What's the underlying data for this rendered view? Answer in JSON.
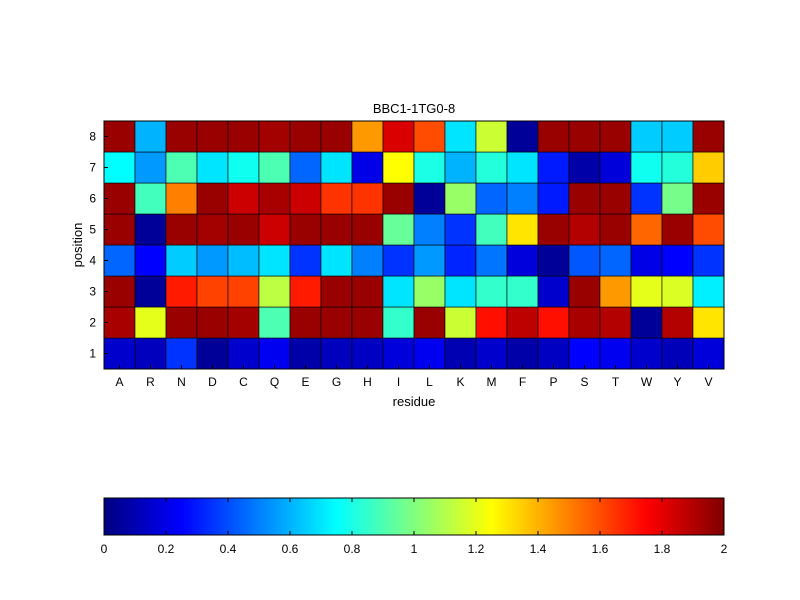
{
  "chart_data": {
    "type": "heatmap",
    "title": "BBC1-1TG0-8",
    "xlabel": "residue",
    "ylabel": "position",
    "x_categories": [
      "A",
      "R",
      "N",
      "D",
      "C",
      "Q",
      "E",
      "G",
      "H",
      "I",
      "L",
      "K",
      "M",
      "F",
      "P",
      "S",
      "T",
      "W",
      "Y",
      "V"
    ],
    "y_categories": [
      "1",
      "2",
      "3",
      "4",
      "5",
      "6",
      "7",
      "8"
    ],
    "colormap": "jet",
    "clim": [
      0,
      2
    ],
    "colorbar": {
      "placement": "bottom",
      "ticks": [
        "0",
        "0.2",
        "0.4",
        "0.6",
        "0.8",
        "1",
        "1.2",
        "1.4",
        "1.6",
        "1.8",
        "2"
      ]
    },
    "values": [
      [
        0.15,
        0.12,
        0.35,
        0.05,
        0.15,
        0.22,
        0.08,
        0.12,
        0.13,
        0.18,
        0.22,
        0.1,
        0.15,
        0.08,
        0.13,
        0.25,
        0.22,
        0.15,
        0.11,
        0.18
      ],
      [
        1.92,
        1.2,
        1.95,
        1.95,
        1.93,
        0.9,
        1.95,
        1.95,
        1.95,
        0.85,
        1.95,
        1.15,
        1.72,
        1.88,
        1.72,
        1.92,
        1.9,
        0.05,
        1.9,
        1.3
      ],
      [
        1.95,
        0.05,
        1.7,
        1.62,
        1.62,
        1.12,
        1.7,
        1.95,
        1.95,
        0.7,
        1.05,
        0.7,
        0.85,
        0.85,
        0.15,
        1.95,
        1.45,
        1.2,
        1.18,
        0.72
      ],
      [
        0.45,
        0.25,
        0.65,
        0.55,
        0.62,
        0.7,
        0.35,
        0.7,
        0.5,
        0.35,
        0.55,
        0.32,
        0.48,
        0.18,
        0.05,
        0.42,
        0.45,
        0.2,
        0.25,
        0.35
      ],
      [
        1.95,
        0.05,
        1.95,
        1.93,
        1.95,
        1.85,
        1.95,
        1.95,
        1.95,
        0.95,
        0.5,
        0.35,
        0.88,
        1.3,
        1.95,
        1.9,
        1.95,
        1.55,
        1.95,
        1.6
      ],
      [
        1.95,
        0.88,
        1.5,
        1.95,
        1.85,
        1.92,
        1.85,
        1.65,
        1.65,
        1.95,
        0.05,
        1.05,
        0.45,
        0.5,
        0.3,
        1.95,
        1.95,
        0.35,
        0.98,
        1.95
      ],
      [
        0.75,
        0.55,
        0.9,
        0.7,
        0.78,
        0.9,
        0.45,
        0.7,
        0.2,
        1.25,
        0.8,
        0.6,
        0.82,
        0.7,
        0.3,
        0.08,
        0.18,
        0.78,
        0.82,
        1.35
      ],
      [
        1.95,
        0.6,
        1.95,
        1.95,
        1.95,
        1.93,
        1.95,
        1.95,
        1.45,
        1.82,
        1.6,
        0.7,
        1.15,
        0.05,
        1.95,
        1.95,
        1.95,
        0.65,
        0.65,
        1.95
      ]
    ]
  }
}
